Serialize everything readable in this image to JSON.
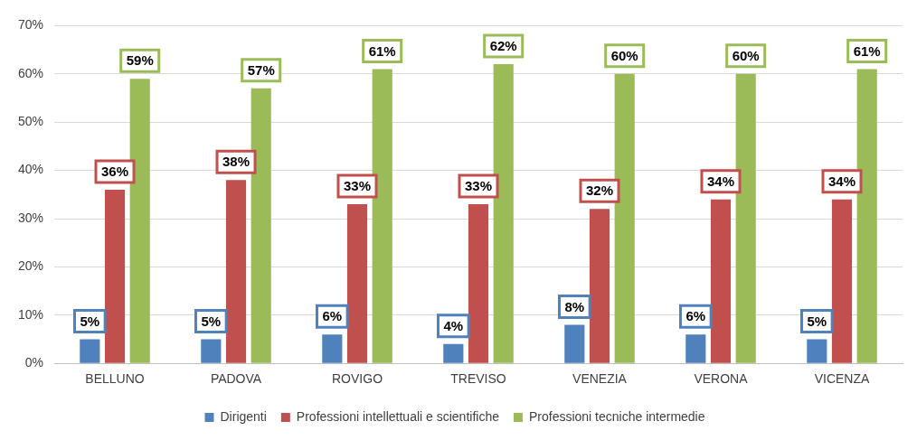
{
  "chart_data": {
    "type": "bar",
    "categories": [
      "BELLUNO",
      "PADOVA",
      "ROVIGO",
      "TREVISO",
      "VENEZIA",
      "VERONA",
      "VICENZA"
    ],
    "series": [
      {
        "name": "Dirigenti",
        "color": "#4f81bd",
        "values": [
          5,
          5,
          6,
          4,
          8,
          6,
          5
        ],
        "value_labels": [
          "5%",
          "5%",
          "6%",
          "4%",
          "8%",
          "6%",
          "5%"
        ]
      },
      {
        "name": "Professioni intellettuali e scientifiche",
        "color": "#c0504d",
        "values": [
          36,
          38,
          33,
          33,
          32,
          34,
          34
        ],
        "value_labels": [
          "36%",
          "38%",
          "33%",
          "33%",
          "32%",
          "34%",
          "34%"
        ]
      },
      {
        "name": "Professioni tecniche intermedie",
        "color": "#9bbb59",
        "values": [
          59,
          57,
          61,
          62,
          60,
          60,
          61
        ],
        "value_labels": [
          "59%",
          "57%",
          "61%",
          "62%",
          "60%",
          "60%",
          "61%"
        ]
      }
    ],
    "ylim": [
      0,
      70
    ],
    "yticks": [
      {
        "value": 0,
        "label": "0%"
      },
      {
        "value": 10,
        "label": "10%"
      },
      {
        "value": 20,
        "label": "20%"
      },
      {
        "value": 30,
        "label": "30%"
      },
      {
        "value": 40,
        "label": "40%"
      },
      {
        "value": 50,
        "label": "50%"
      },
      {
        "value": 60,
        "label": "60%"
      },
      {
        "value": 70,
        "label": "70%"
      }
    ],
    "grid": "y",
    "legend": "bottom"
  }
}
